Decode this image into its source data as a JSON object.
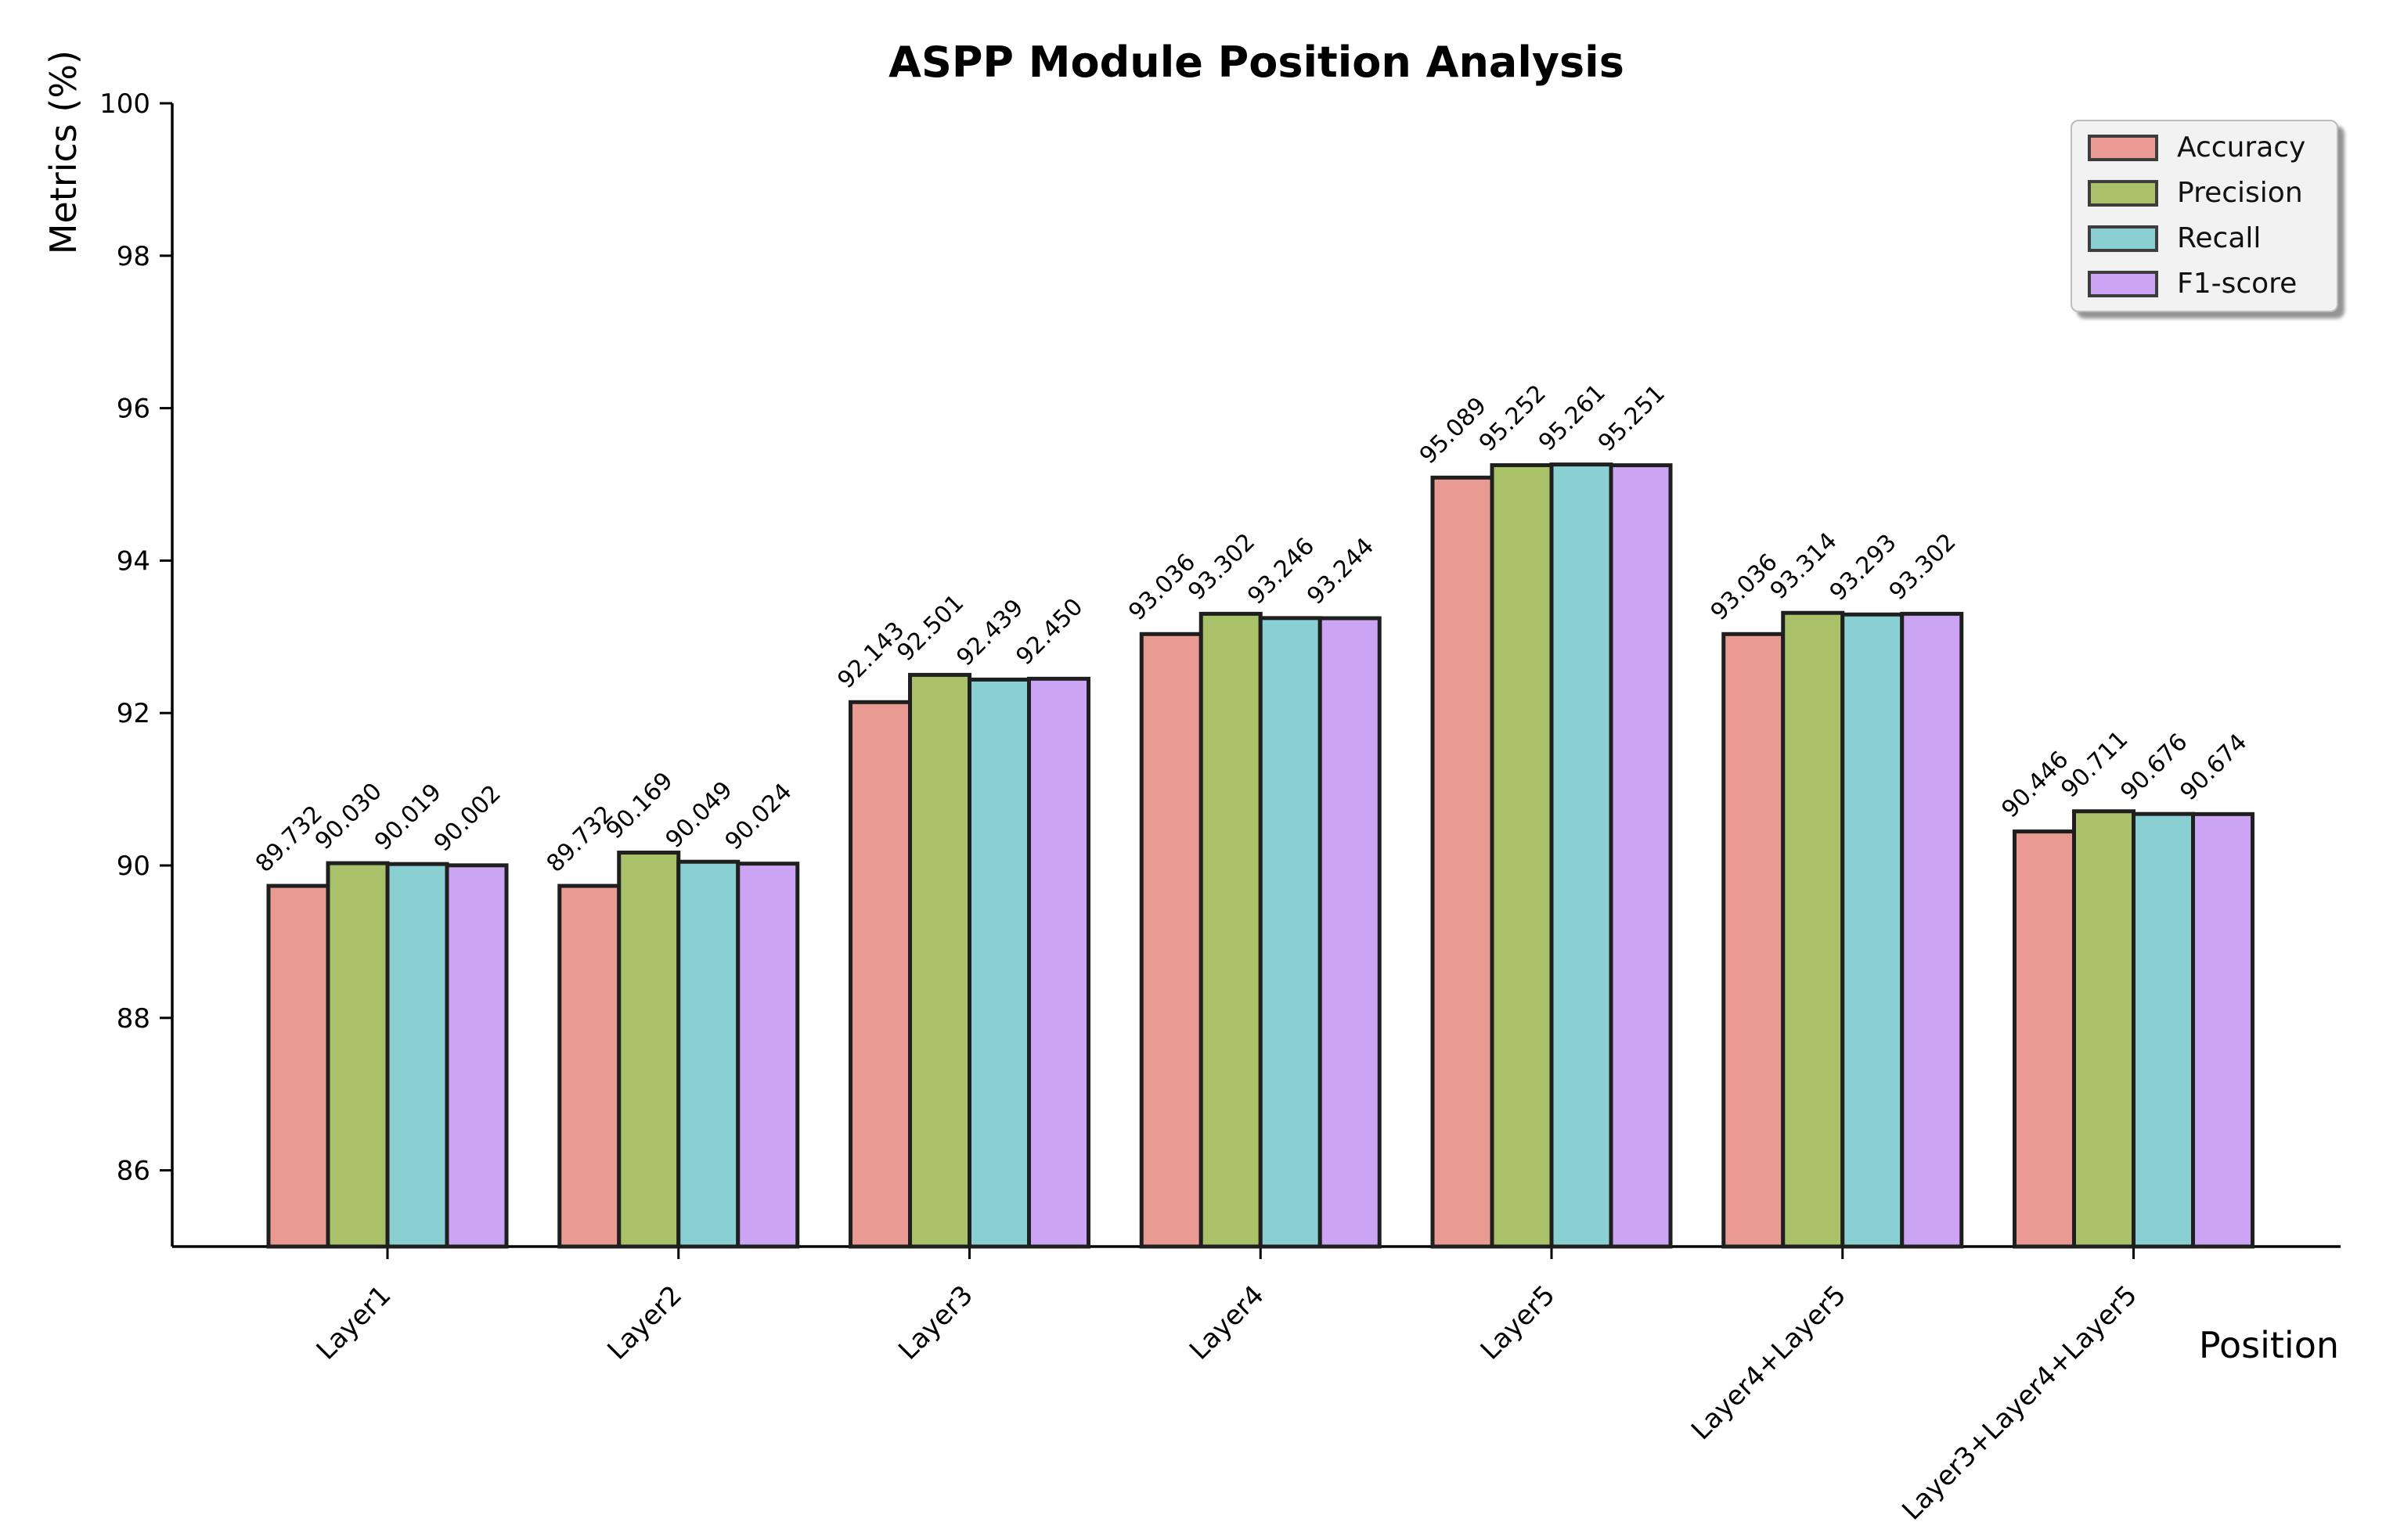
{
  "chart_data": {
    "type": "bar",
    "title": "ASPP Module Position Analysis",
    "xlabel": "Position",
    "ylabel": "Metrics (%)",
    "categories": [
      "Layer1",
      "Layer2",
      "Layer3",
      "Layer4",
      "Layer5",
      "Layer4+Layer5",
      "Layer3+Layer4+Layer5"
    ],
    "series": [
      {
        "name": "Accuracy",
        "color": "#E99A92",
        "values": [
          89.732,
          89.732,
          92.143,
          93.036,
          95.089,
          93.036,
          90.446
        ]
      },
      {
        "name": "Precision",
        "color": "#A9C269",
        "values": [
          90.03,
          90.169,
          92.501,
          93.302,
          95.252,
          93.314,
          90.711
        ]
      },
      {
        "name": "Recall",
        "color": "#8AD0D2",
        "values": [
          90.019,
          90.049,
          92.439,
          93.246,
          95.261,
          93.293,
          90.676
        ]
      },
      {
        "name": "F1-score",
        "color": "#CBA5F3",
        "values": [
          90.002,
          90.024,
          92.45,
          93.244,
          95.251,
          93.302,
          90.674
        ]
      }
    ],
    "ylim": [
      85,
      100
    ],
    "yticks": [
      86,
      88,
      90,
      92,
      94,
      96,
      98,
      100
    ],
    "value_label_decimals": 3,
    "bar_edge_color": "#1f1f1f",
    "axis_color": "#000000",
    "grid": false,
    "legend": {
      "position": "upper right",
      "labels": [
        "Accuracy",
        "Precision",
        "Recall",
        "F1-score"
      ]
    }
  }
}
